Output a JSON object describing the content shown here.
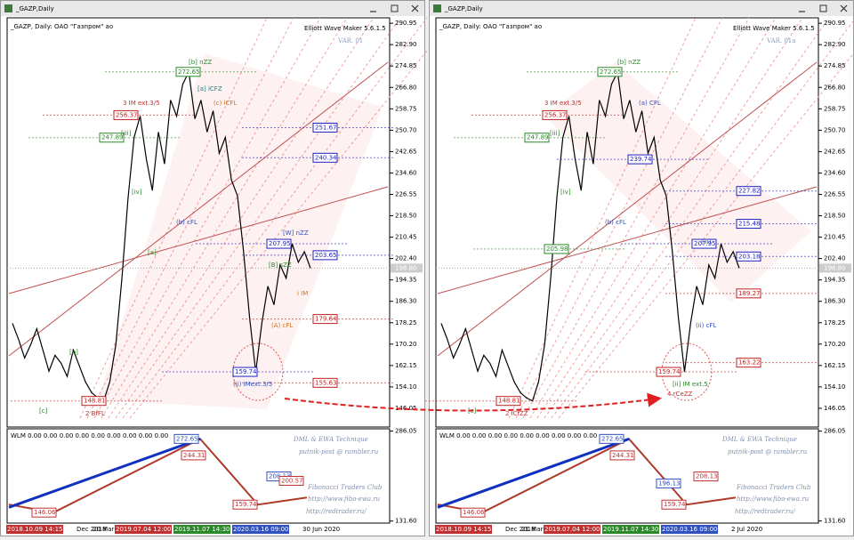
{
  "price_axis": {
    "ylim": [
      139.0,
      293.0
    ],
    "ticks": [
      {
        "value": 290.95,
        "label": "290.95"
      },
      {
        "value": 282.9,
        "label": "282.90"
      },
      {
        "value": 274.85,
        "label": "274.85"
      },
      {
        "value": 266.8,
        "label": "266.80"
      },
      {
        "value": 258.75,
        "label": "258.75"
      },
      {
        "value": 250.7,
        "label": "250.70"
      },
      {
        "value": 242.65,
        "label": "242.65"
      },
      {
        "value": 234.6,
        "label": "234.60"
      },
      {
        "value": 226.55,
        "label": "226.55"
      },
      {
        "value": 218.5,
        "label": "218.50"
      },
      {
        "value": 210.45,
        "label": "210.45"
      },
      {
        "value": 202.4,
        "label": "202.40"
      },
      {
        "value": 194.35,
        "label": "194.35"
      },
      {
        "value": 186.3,
        "label": "186.30"
      },
      {
        "value": 178.25,
        "label": "178.25"
      },
      {
        "value": 170.2,
        "label": "170.20"
      },
      {
        "value": 162.15,
        "label": "162.15"
      },
      {
        "value": 154.1,
        "label": "154.10"
      },
      {
        "value": 146.05,
        "label": "146.05"
      }
    ],
    "current": {
      "value": 198.8,
      "label": "198.80"
    }
  },
  "price": [
    178,
    172,
    165,
    170,
    176,
    168,
    160,
    166,
    163,
    158,
    168,
    162,
    156,
    152,
    150,
    148.81,
    156,
    170,
    195,
    225,
    248,
    256,
    240,
    228,
    250,
    238,
    262,
    256,
    268,
    272.65,
    255,
    262,
    250,
    258,
    242,
    248,
    232,
    226,
    205,
    180,
    159.74,
    178,
    192,
    185,
    200,
    195,
    207.95,
    201,
    205,
    198.8
  ],
  "indicator": {
    "header": "WLM 0.00 0.00 0.00 0.00 0.00 0.00 0.00 0.00 0.00",
    "ylim": [
      128,
      290
    ],
    "ticks": [
      {
        "value": 286.05,
        "label": "286.05"
      },
      {
        "value": 131.6,
        "label": "131.60"
      }
    ],
    "zigzag": [
      160,
      146.06,
      272.65,
      159.74,
      172
    ],
    "trend": [
      155,
      272.65
    ],
    "credits": [
      "DML & EWA Technique",
      "putnik-post @ rambler.ru",
      "Fibonacci    Traders    Club",
      "http://www.fibo-ewa.ru",
      "http://redtrader.ru/"
    ]
  },
  "windows": [
    {
      "title": "_GAZP,Daily",
      "symbol_line": "_GAZP, Daily:  ОАО \"Газпром\" ао",
      "tool": "Elliott Wave Maker 5.6.1.5",
      "variant": "VAR. 01",
      "price_tags": [
        {
          "value": 272.65,
          "label": "272.65",
          "color": "#2a8a2a"
        },
        {
          "value": 256.37,
          "label": "256.37",
          "color": "#c02020"
        },
        {
          "value": 247.89,
          "label": "247.89",
          "color": "#2a8a2a"
        },
        {
          "value": 251.67,
          "label": "251.67",
          "color": "#2020c0"
        },
        {
          "value": 240.34,
          "label": "240.34",
          "color": "#2020c0"
        },
        {
          "value": 207.95,
          "label": "207.95",
          "color": "#2020c0"
        },
        {
          "value": 203.65,
          "label": "203.65",
          "color": "#2020c0"
        },
        {
          "value": 179.64,
          "label": "179.64",
          "color": "#c02020"
        },
        {
          "value": 159.74,
          "label": "159.74",
          "color": "#2020c0"
        },
        {
          "value": 155.63,
          "label": "155.63",
          "color": "#c02020"
        },
        {
          "value": 148.81,
          "label": "148.81",
          "color": "#c02020"
        }
      ],
      "wave_labels": [
        "3 IM ext.3/5",
        "[b] nZZ",
        "[a] iCFZ",
        "(c) iCFL",
        "[W] nZZ",
        "[B] sZZ",
        "(ii) IMext.3/5",
        "2 BfFL",
        "(A) cFL",
        "i IM",
        "(b) cFL",
        "[a]",
        "[iii]",
        "[iv]",
        "[b]",
        "[c]"
      ],
      "indicator_tags": [
        {
          "value": 272.65,
          "label": "272.65"
        },
        {
          "value": 244.31,
          "label": "244.31"
        },
        {
          "value": 208.13,
          "label": "208.13"
        },
        {
          "value": 200.57,
          "label": "200.57"
        },
        {
          "value": 159.74,
          "label": "159.74"
        },
        {
          "value": 146.06,
          "label": "146.06"
        }
      ],
      "dates": [
        "2018.10.09 14:15",
        "Dec 2018",
        "20 Mar 2",
        "2019.07.04 12:00",
        "2019.11.07 14:30",
        "2020.03.16 09:00",
        "30 Jun 2020"
      ]
    },
    {
      "title": "_GAZP,Daily",
      "symbol_line": "_GAZP, Daily:  ОАО \"Газпром\" ао",
      "tool": "Elliott Wave Maker 5.6.1.5",
      "variant": "VAR. 01a",
      "price_tags": [
        {
          "value": 272.65,
          "label": "272.65",
          "color": "#2a8a2a"
        },
        {
          "value": 256.37,
          "label": "256.37",
          "color": "#c02020"
        },
        {
          "value": 247.89,
          "label": "247.89",
          "color": "#2a8a2a"
        },
        {
          "value": 239.74,
          "label": "239.74",
          "color": "#2020c0"
        },
        {
          "value": 227.82,
          "label": "227.82",
          "color": "#2020c0"
        },
        {
          "value": 215.48,
          "label": "215.48",
          "color": "#2020c0"
        },
        {
          "value": 205.98,
          "label": "205.98",
          "color": "#2a8a2a"
        },
        {
          "value": 207.95,
          "label": "207.95",
          "color": "#2020c0"
        },
        {
          "value": 203.18,
          "label": "203.18",
          "color": "#2020c0"
        },
        {
          "value": 189.27,
          "label": "189.27",
          "color": "#c02020"
        },
        {
          "value": 163.22,
          "label": "163.22",
          "color": "#c02020"
        },
        {
          "value": 159.74,
          "label": "159.74",
          "color": "#c02020"
        },
        {
          "value": 148.81,
          "label": "148.81",
          "color": "#c02020"
        }
      ],
      "wave_labels": [
        "3 IM ext.3/5",
        "[b] nZZ",
        "(a) CFL",
        "(b) cFL",
        "(ii) cFL",
        "[ii] IM ext.5",
        "4 rCeZZ",
        "2 iCfZZ",
        "(iii)",
        "[iii]",
        "[iv]",
        "[c]"
      ],
      "indicator_tags": [
        {
          "value": 272.65,
          "label": "272.65"
        },
        {
          "value": 244.31,
          "label": "244.31"
        },
        {
          "value": 196.13,
          "label": "196.13"
        },
        {
          "value": 208.13,
          "label": "208.13"
        },
        {
          "value": 159.74,
          "label": "159.74"
        },
        {
          "value": 146.06,
          "label": "146.06"
        }
      ],
      "dates": [
        "2018.10.09 14:15",
        "Dec 2018",
        "21 Mar 2",
        "2019.07.04 12:00",
        "2019.11.07 14:30",
        "2020.03.16 09:00",
        "2 Jul 2020"
      ]
    }
  ]
}
